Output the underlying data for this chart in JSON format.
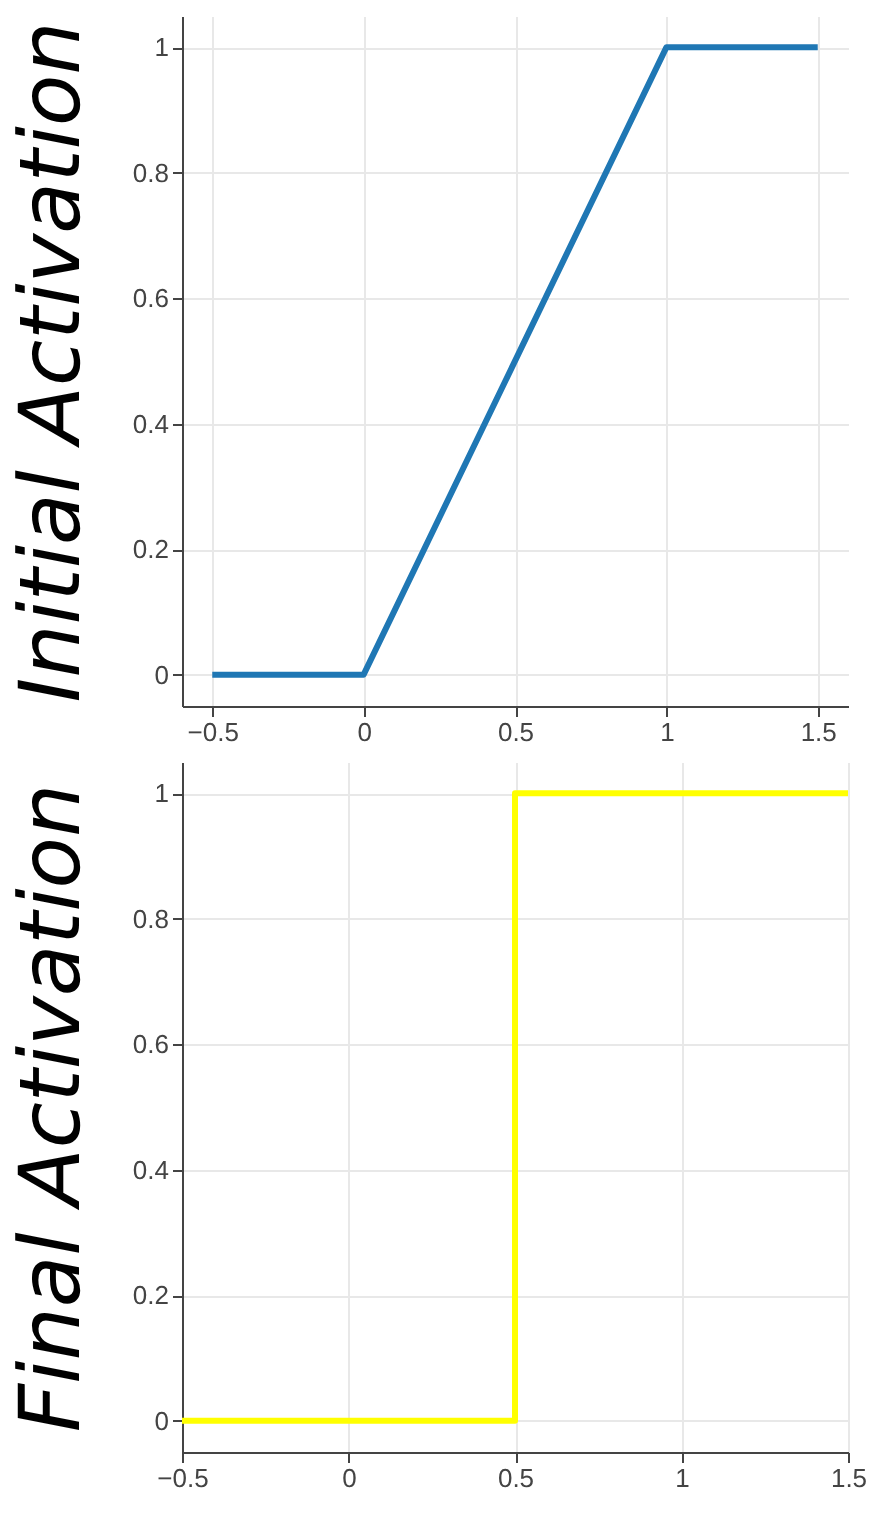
{
  "chart_data": [
    {
      "type": "line",
      "ylabel": "Initial Activation",
      "x": [
        -0.5,
        0,
        1,
        1.5
      ],
      "series": [
        {
          "color": "#1f77b4",
          "values": [
            0,
            0,
            1,
            1
          ]
        }
      ],
      "xlim": [
        -0.6,
        1.6
      ],
      "xticks": [
        -0.5,
        0,
        0.5,
        1,
        1.5
      ],
      "ylim": [
        -0.05,
        1.05
      ],
      "yticks": [
        0,
        0.2,
        0.4,
        0.6,
        0.8,
        1
      ],
      "grid": true
    },
    {
      "type": "step",
      "ylabel": "Final Activation",
      "x": [
        -0.5,
        0.5,
        1.5
      ],
      "series": [
        {
          "color": "#ffff00",
          "values": [
            0,
            1,
            1
          ]
        }
      ],
      "xlim": [
        -0.5,
        1.5
      ],
      "xticks": [
        -0.5,
        0,
        0.5,
        1,
        1.5
      ],
      "ylim": [
        -0.05,
        1.05
      ],
      "yticks": [
        0,
        0.2,
        0.4,
        0.6,
        0.8,
        1
      ],
      "grid": true
    }
  ]
}
